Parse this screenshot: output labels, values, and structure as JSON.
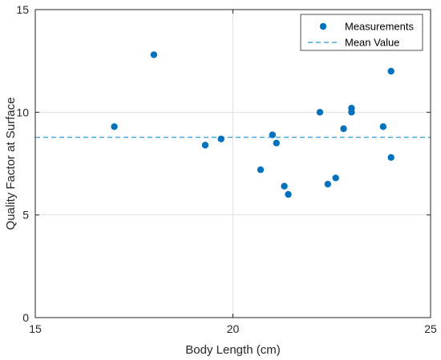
{
  "chart_data": {
    "type": "scatter",
    "xlabel": "Body Length (cm)",
    "ylabel": "Quality Factor at Surface",
    "xlim": [
      15,
      25
    ],
    "ylim": [
      0,
      15
    ],
    "xticks": [
      15,
      20,
      25
    ],
    "yticks": [
      0,
      5,
      10,
      15
    ],
    "xtick_labels": [
      "15",
      "20",
      "25"
    ],
    "ytick_labels": [
      "0",
      "5",
      "10",
      "15"
    ],
    "grid": true,
    "legend_location": "top-right",
    "series": [
      {
        "name": "Measurements",
        "kind": "scatter",
        "color": "#0072BD",
        "points": [
          {
            "x": 17.0,
            "y": 9.3
          },
          {
            "x": 18.0,
            "y": 12.8
          },
          {
            "x": 19.3,
            "y": 8.4
          },
          {
            "x": 19.7,
            "y": 8.7
          },
          {
            "x": 20.7,
            "y": 7.2
          },
          {
            "x": 21.0,
            "y": 8.9
          },
          {
            "x": 21.1,
            "y": 8.5
          },
          {
            "x": 21.3,
            "y": 6.4
          },
          {
            "x": 21.4,
            "y": 6.0
          },
          {
            "x": 22.2,
            "y": 10.0
          },
          {
            "x": 22.4,
            "y": 6.5
          },
          {
            "x": 22.6,
            "y": 6.8
          },
          {
            "x": 22.8,
            "y": 9.2
          },
          {
            "x": 23.0,
            "y": 10.2
          },
          {
            "x": 23.0,
            "y": 10.0
          },
          {
            "x": 23.8,
            "y": 9.3
          },
          {
            "x": 24.0,
            "y": 12.0
          },
          {
            "x": 24.0,
            "y": 7.8
          }
        ]
      },
      {
        "name": "Mean Value",
        "kind": "hline",
        "color": "#4DA6D9",
        "value": 8.78
      }
    ]
  }
}
